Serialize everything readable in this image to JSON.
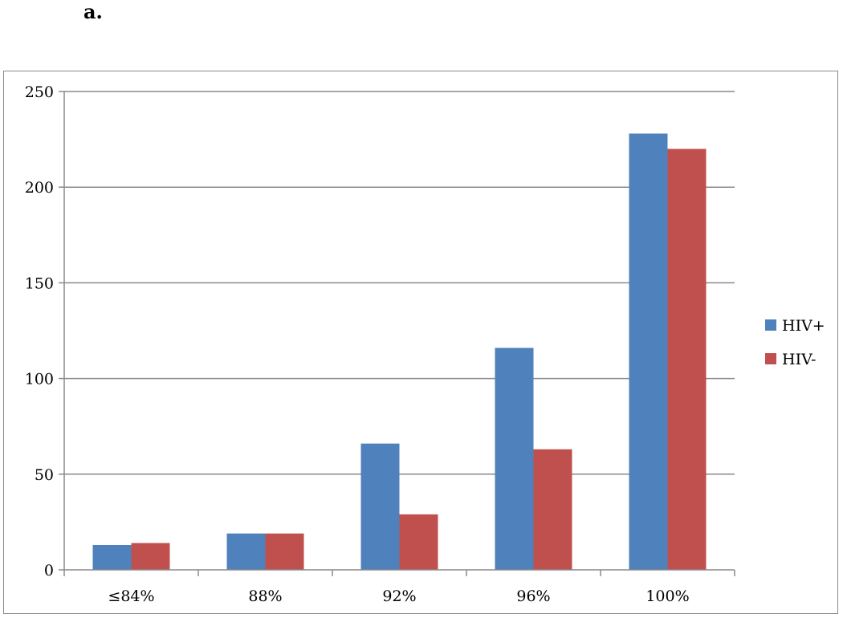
{
  "panel_label": "a.",
  "chart_data": {
    "type": "bar",
    "title": "",
    "xlabel": "",
    "ylabel": "",
    "categories": [
      "≤84%",
      "88%",
      "92%",
      "96%",
      "100%"
    ],
    "series": [
      {
        "name": "HIV+",
        "values": [
          13,
          19,
          66,
          116,
          228
        ],
        "color": "#4f81bd"
      },
      {
        "name": "HIV-",
        "values": [
          14,
          19,
          29,
          63,
          220
        ],
        "color": "#c0504d"
      }
    ],
    "ylim": [
      0,
      250
    ],
    "yticks": [
      0,
      50,
      100,
      150,
      200,
      250
    ],
    "grid": true,
    "legend_position": "right"
  }
}
